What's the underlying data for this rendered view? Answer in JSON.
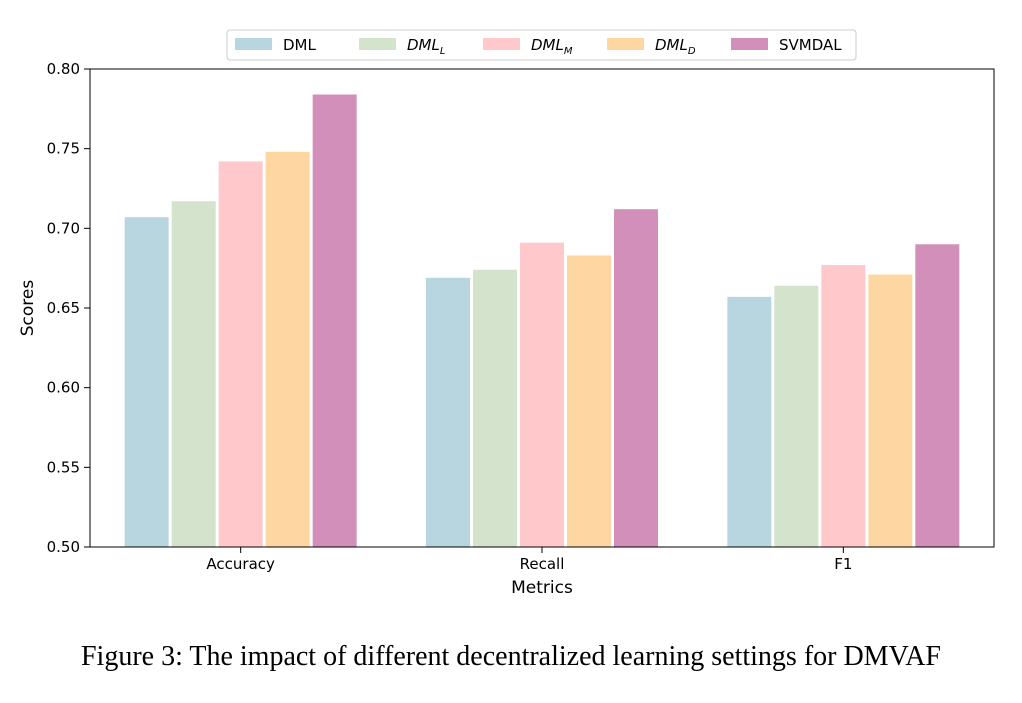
{
  "chart_data": {
    "type": "bar",
    "categories": [
      "Accuracy",
      "Recall",
      "F1"
    ],
    "series": [
      {
        "name": "DML",
        "name_base": "DML",
        "name_sub": "",
        "italic": false,
        "color": "#b8d6e0",
        "values": [
          0.707,
          0.669,
          0.657
        ]
      },
      {
        "name": "DML_L",
        "name_base": "DML",
        "name_sub": "L",
        "italic": true,
        "color": "#d4e3cb",
        "values": [
          0.717,
          0.674,
          0.664
        ]
      },
      {
        "name": "DML_M",
        "name_base": "DML",
        "name_sub": "M",
        "italic": true,
        "color": "#ffc9cc",
        "values": [
          0.742,
          0.691,
          0.677
        ]
      },
      {
        "name": "DML_D",
        "name_base": "DML",
        "name_sub": "D",
        "italic": true,
        "color": "#fed6a1",
        "values": [
          0.748,
          0.683,
          0.671
        ]
      },
      {
        "name": "SVMDAL",
        "name_base": "SVMDAL",
        "name_sub": "",
        "italic": false,
        "color": "#d18fba",
        "values": [
          0.784,
          0.712,
          0.69
        ]
      }
    ],
    "xlabel": "Metrics",
    "ylabel": "Scores",
    "ylim": [
      0.5,
      0.8
    ],
    "yticks": [
      "0.50",
      "0.55",
      "0.60",
      "0.65",
      "0.70",
      "0.75",
      "0.80"
    ],
    "grid": false,
    "legend_position": "top-center"
  },
  "caption": "Figure 3: The impact of different decentralized learning settings for DMVAF"
}
